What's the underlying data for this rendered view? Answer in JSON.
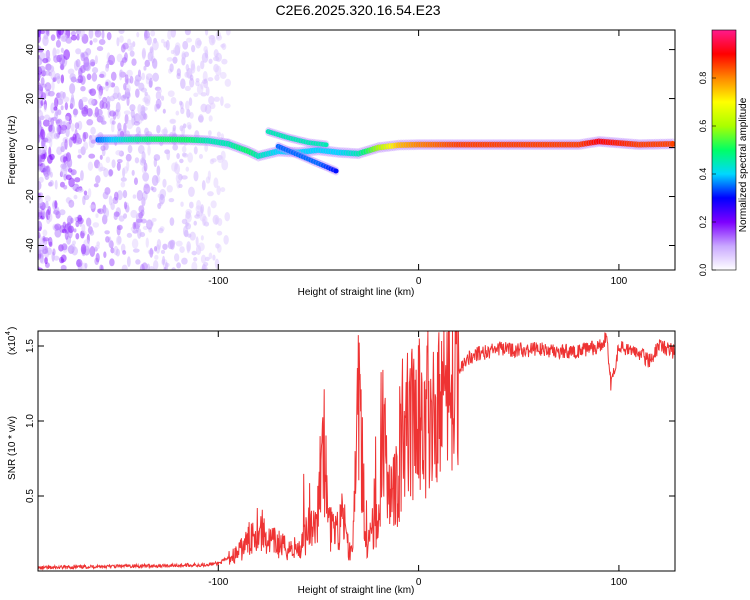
{
  "title": "C2E6.2025.320.16.54.E23",
  "chart_data": [
    {
      "type": "heatmap",
      "title": "C2E6.2025.320.16.54.E23",
      "xlabel": "Height of straight line (km)",
      "ylabel": "Frequency (Hz)",
      "xlim": [
        -190,
        128
      ],
      "ylim": [
        -50,
        48
      ],
      "xticks": [
        -100,
        0,
        100
      ],
      "yticks": [
        -40,
        -20,
        0,
        20,
        40
      ],
      "colorbar": {
        "label": "Normalized spectral amplitude",
        "ticks": [
          0.0,
          0.2,
          0.4,
          0.6,
          0.8
        ],
        "range": [
          0,
          1
        ],
        "colors": [
          "#ffffff",
          "#c9a8ff",
          "#7d00ff",
          "#0000ff",
          "#00d8ff",
          "#00ff66",
          "#aaff00",
          "#ffff00",
          "#ff8800",
          "#ff0000",
          "#ff1a8c"
        ]
      },
      "ridge": [
        {
          "x": -160,
          "y": 3.2,
          "a": 0.35
        },
        {
          "x": -145,
          "y": 3.3,
          "a": 0.45
        },
        {
          "x": -130,
          "y": 3.4,
          "a": 0.5
        },
        {
          "x": -115,
          "y": 3.2,
          "a": 0.5
        },
        {
          "x": -105,
          "y": 2.8,
          "a": 0.45
        },
        {
          "x": -95,
          "y": 1.5,
          "a": 0.45
        },
        {
          "x": -85,
          "y": -1.5,
          "a": 0.5
        },
        {
          "x": -80,
          "y": -3.5,
          "a": 0.45
        },
        {
          "x": -70,
          "y": -1.5,
          "a": 0.4
        },
        {
          "x": -60,
          "y": -2.0,
          "a": 0.4
        },
        {
          "x": -50,
          "y": -1.0,
          "a": 0.4
        },
        {
          "x": -40,
          "y": -2.0,
          "a": 0.4
        },
        {
          "x": -30,
          "y": -2.5,
          "a": 0.45
        },
        {
          "x": -20,
          "y": 0.0,
          "a": 0.6
        },
        {
          "x": -10,
          "y": 1.0,
          "a": 0.75
        },
        {
          "x": 0,
          "y": 1.2,
          "a": 0.8
        },
        {
          "x": 20,
          "y": 1.2,
          "a": 0.85
        },
        {
          "x": 50,
          "y": 1.2,
          "a": 0.85
        },
        {
          "x": 80,
          "y": 1.2,
          "a": 0.85
        },
        {
          "x": 90,
          "y": 2.5,
          "a": 0.9
        },
        {
          "x": 110,
          "y": 1.2,
          "a": 0.85
        },
        {
          "x": 128,
          "y": 1.5,
          "a": 0.85
        }
      ],
      "branches": [
        [
          {
            "x": -75,
            "y": 6.5,
            "a": 0.45
          },
          {
            "x": -65,
            "y": 4.0,
            "a": 0.45
          },
          {
            "x": -55,
            "y": 2.0,
            "a": 0.45
          },
          {
            "x": -45,
            "y": 1.0,
            "a": 0.45
          }
        ],
        [
          {
            "x": -70,
            "y": 0.5,
            "a": 0.35
          },
          {
            "x": -60,
            "y": -3.0,
            "a": 0.35
          },
          {
            "x": -50,
            "y": -6.5,
            "a": 0.35
          },
          {
            "x": -40,
            "y": -10.0,
            "a": 0.3
          }
        ]
      ]
    },
    {
      "type": "line",
      "xlabel": "Height of straight line (km)",
      "ylabel": "SNR (10 * v/v)",
      "scale_label": "(x10",
      "scale_exponent": "4",
      "xlim": [
        -190,
        128
      ],
      "ylim": [
        0,
        16000
      ],
      "xticks": [
        -100,
        0,
        100
      ],
      "yticks": [
        5000,
        10000,
        15000
      ],
      "ytick_labels": [
        "0.5",
        "1.0",
        "1.5"
      ],
      "color": "#ee3333",
      "series": [
        {
          "name": "SNR",
          "x": [
            -190,
            -160,
            -130,
            -110,
            -100,
            -90,
            -85,
            -82,
            -80,
            -77,
            -75,
            -70,
            -66,
            -60,
            -55,
            -50,
            -48,
            -45,
            -40,
            -38,
            -35,
            -33,
            -30,
            -27,
            -25,
            -20,
            -18,
            -15,
            -12,
            -10,
            -8,
            -5,
            0,
            5,
            10,
            15,
            20,
            25,
            30,
            35,
            40,
            50,
            60,
            70,
            80,
            90,
            94,
            96,
            100,
            110,
            115,
            120,
            128
          ],
          "values": [
            200,
            300,
            350,
            400,
            500,
            1200,
            2000,
            2800,
            3000,
            2500,
            2000,
            1800,
            1500,
            1500,
            2600,
            3800,
            9000,
            3000,
            2300,
            4000,
            1500,
            1000,
            12500,
            1800,
            2000,
            3500,
            9500,
            4500,
            5500,
            6500,
            9000,
            9500,
            10000,
            10500,
            11000,
            12500,
            13500,
            14200,
            14500,
            14600,
            14800,
            14700,
            14800,
            14600,
            14700,
            14900,
            15600,
            12400,
            14900,
            14500,
            14000,
            15000,
            14600
          ]
        }
      ]
    }
  ]
}
